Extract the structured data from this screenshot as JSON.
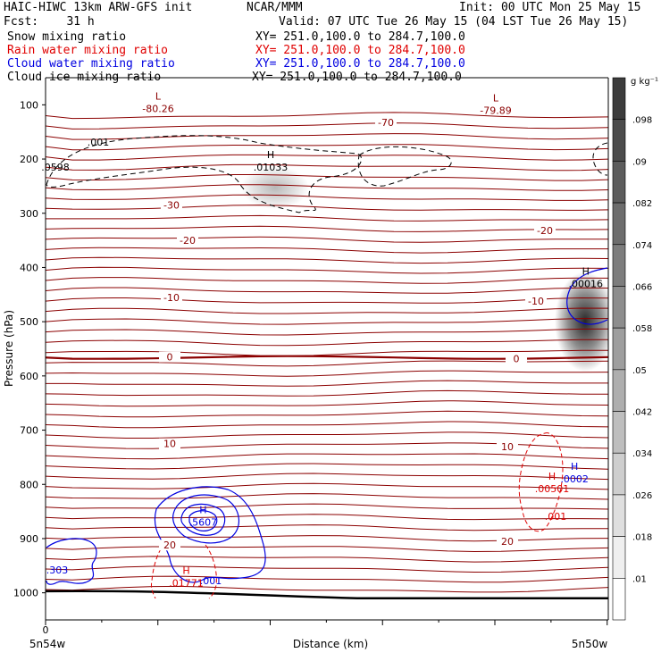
{
  "header": {
    "line1_left": "HAIC-HIWC 13km ARW-GFS init",
    "line1_center": "NCAR/MMM",
    "line1_right": "Init: 00 UTC Mon 25 May 15",
    "line2_left": "Fcst:    31 h",
    "line2_right": "Valid: 07 UTC Tue 26 May 15 (04 LST Tue 26 May 15)",
    "fields": [
      {
        "name": "Snow mixing ratio",
        "xy": "XY= 251.0,100.0 to 284.7,100.0",
        "color": "#000000"
      },
      {
        "name": "Rain water mixing ratio",
        "xy": "XY= 251.0,100.0 to 284.7,100.0",
        "color": "#e00000"
      },
      {
        "name": "Cloud water mixing ratio",
        "xy": "XY= 251.0,100.0 to 284.7,100.0",
        "color": "#0000e0"
      },
      {
        "name": "Cloud ice mixing ratio",
        "xy": "XY= 251.0,100.0 to 284.7,100.0",
        "color": "#000000"
      }
    ]
  },
  "chart_data": {
    "type": "cross-section",
    "ylabel": "Pressure (hPa)",
    "xlabel": "Distance (km)",
    "x_tick_labels": [
      "0"
    ],
    "x_endpoint_labels": [
      "5n54w",
      "5n50w"
    ],
    "y_ticks": [
      100,
      200,
      300,
      400,
      500,
      600,
      700,
      800,
      900,
      1000
    ],
    "ylim": [
      1050,
      50
    ],
    "colorbar": {
      "unit": "g kg⁻¹",
      "levels": [
        ".098",
        ".09",
        ".082",
        ".074",
        ".066",
        ".058",
        ".05",
        ".042",
        ".034",
        ".026",
        ".018",
        ".01"
      ]
    },
    "temperature_contours_C": {
      "labeled": [
        {
          "value": "-70",
          "p": 132
        },
        {
          "value": "-30",
          "p": 285
        },
        {
          "value": "-20",
          "p": 350
        },
        {
          "value": "-20",
          "p": 332
        },
        {
          "value": "-10",
          "p": 455
        },
        {
          "value": "-10",
          "p": 462
        },
        {
          "value": "0",
          "p": 565
        },
        {
          "value": "0",
          "p": 568
        },
        {
          "value": "10",
          "p": 725
        },
        {
          "value": "10",
          "p": 730
        },
        {
          "value": "20",
          "p": 912
        },
        {
          "value": "20",
          "p": 905
        }
      ],
      "interval": 5,
      "zero_line_bold": true
    },
    "extrema": [
      {
        "kind": "L",
        "value": "-80.26",
        "field": "temperature",
        "x_frac": 0.2,
        "p": 107
      },
      {
        "kind": "L",
        "value": "-79.89",
        "field": "temperature",
        "x_frac": 0.8,
        "p": 110
      },
      {
        "kind": "H",
        "value": ".01033",
        "field": "snow",
        "x_frac": 0.4,
        "p": 215
      },
      {
        "kind": "H",
        "value": ".00016",
        "field": "snow",
        "x_frac": 0.96,
        "p": 430
      },
      {
        "kind": "H",
        "value": ".5607",
        "field": "cloud water",
        "x_frac": 0.28,
        "p": 870
      },
      {
        "kind": "H",
        "value": ".0002",
        "field": "cloud water",
        "x_frac": 0.94,
        "p": 790
      },
      {
        "kind": "H",
        "value": ".00501",
        "field": "rain water",
        "x_frac": 0.9,
        "p": 808
      },
      {
        "kind": "H",
        "value": ".01771",
        "field": "rain water",
        "x_frac": 0.25,
        "p": 982
      }
    ],
    "contour_labels": [
      {
        "value": ".001",
        "field": "snow"
      },
      {
        "value": ".0598",
        "field": "snow"
      },
      {
        "value": ".001",
        "field": "cloud water"
      },
      {
        "value": ".001",
        "field": "rain water"
      },
      {
        "value": ".303",
        "field": "cloud water"
      }
    ],
    "surface_pressure_hPa": {
      "left": 997,
      "right": 1010
    }
  }
}
